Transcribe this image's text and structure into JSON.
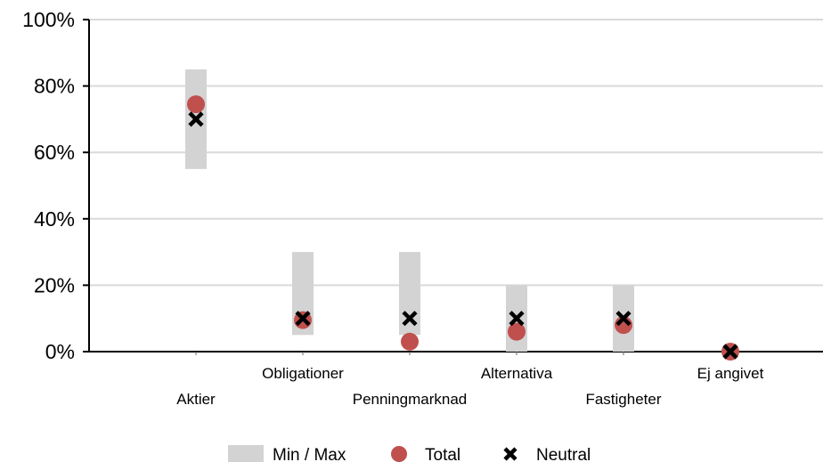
{
  "chart_data": {
    "type": "scatter",
    "categories": [
      "Aktier",
      "Obligationer",
      "Penningmarknad",
      "Alternativa",
      "Fastigheter",
      "Ej angivet"
    ],
    "series": [
      {
        "name": "Min / Max",
        "kind": "range",
        "values": [
          [
            55,
            85
          ],
          [
            5,
            30
          ],
          [
            5,
            30
          ],
          [
            0,
            20
          ],
          [
            0,
            20
          ],
          [
            0,
            0
          ]
        ]
      },
      {
        "name": "Total",
        "kind": "marker-circle",
        "values": [
          74.5,
          9.5,
          3,
          6,
          8,
          0
        ]
      },
      {
        "name": "Neutral",
        "kind": "marker-x",
        "values": [
          70,
          10,
          10,
          10,
          10,
          0
        ]
      }
    ],
    "yticks": [
      "0%",
      "20%",
      "40%",
      "60%",
      "80%",
      "100%"
    ],
    "ylim": [
      0,
      100
    ],
    "grid": true,
    "legend_position": "bottom",
    "colors": {
      "range": "#d3d3d3",
      "total": "#c0504d",
      "neutral": "#000000",
      "grid": "#d9d9d9",
      "axis": "#000000"
    }
  }
}
